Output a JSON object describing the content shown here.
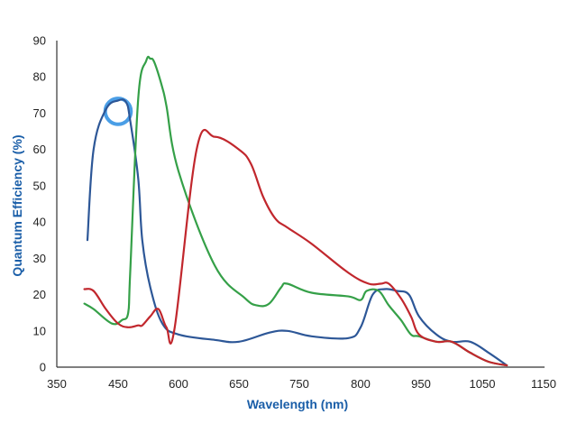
{
  "chart_data": {
    "type": "line",
    "title": "",
    "xlabel": "Wavelength (nm)",
    "ylabel": "Quantum Efficiency (%)",
    "xlim": [
      350,
      1150
    ],
    "ylim": [
      0,
      90
    ],
    "x_ticks": [
      350,
      450,
      600,
      650,
      750,
      800,
      950,
      1050,
      1150
    ],
    "x_tick_labels": [
      "350",
      "450",
      "600",
      "650",
      "750",
      "800",
      "950",
      "1050",
      "1150"
    ],
    "y_ticks": [
      0,
      10,
      20,
      30,
      40,
      50,
      60,
      70,
      80,
      90
    ],
    "y_tick_labels": [
      "0",
      "10",
      "20",
      "30",
      "40",
      "50",
      "60",
      "70",
      "80",
      "90"
    ],
    "grid": false,
    "legend": "none",
    "label_color": "#1a5ea8",
    "axis_color": "#333333",
    "series": [
      {
        "color": "#2d5797",
        "x": [
          400,
          410,
          430,
          450,
          470,
          480,
          500,
          510,
          530,
          560,
          600,
          630,
          650,
          700,
          730,
          760,
          790,
          800,
          830,
          860,
          890,
          920,
          945,
          975,
          1000,
          1030,
          1060,
          1090
        ],
        "y": [
          35,
          60,
          71,
          73.5,
          73,
          68,
          52,
          35,
          22,
          12,
          9,
          7.5,
          7,
          9.5,
          10,
          8.5,
          8,
          11,
          20,
          21.5,
          21,
          20,
          14,
          9,
          7,
          7,
          4,
          0.5
        ]
      },
      {
        "color": "#35a048",
        "x": [
          395,
          410,
          440,
          460,
          475,
          480,
          500,
          520,
          530,
          540,
          560,
          570,
          600,
          630,
          660,
          680,
          700,
          720,
          730,
          760,
          790,
          800,
          815,
          845,
          870,
          900,
          925,
          945,
          975,
          1000,
          1030,
          1060,
          1090
        ],
        "y": [
          17.5,
          16,
          12,
          13,
          15,
          26,
          74,
          84.5,
          85,
          84,
          77,
          72,
          54,
          28,
          19,
          17,
          17.5,
          22,
          23,
          20.5,
          19.5,
          18.5,
          21,
          21,
          17,
          13,
          9,
          8.5,
          7,
          7,
          4,
          1.5,
          0.5
        ]
      },
      {
        "color": "#c1272d",
        "x": [
          395,
          410,
          430,
          450,
          475,
          500,
          510,
          530,
          550,
          570,
          590,
          615,
          630,
          650,
          670,
          690,
          710,
          730,
          760,
          790,
          820,
          850,
          870,
          900,
          925,
          945,
          975,
          1000,
          1030,
          1060,
          1090
        ],
        "y": [
          21.5,
          21,
          16,
          12,
          11,
          11.5,
          11.5,
          14,
          16,
          11,
          10.5,
          60,
          63.5,
          60,
          56,
          47,
          41,
          38.5,
          34,
          26,
          23,
          23,
          23,
          19,
          14,
          9,
          7,
          7,
          4,
          1.5,
          0.5
        ]
      }
    ],
    "annotations": [
      {
        "type": "circle",
        "color": "#4a9ee6",
        "cx": 450,
        "cy": 70.5,
        "r_x": 32
      }
    ]
  }
}
